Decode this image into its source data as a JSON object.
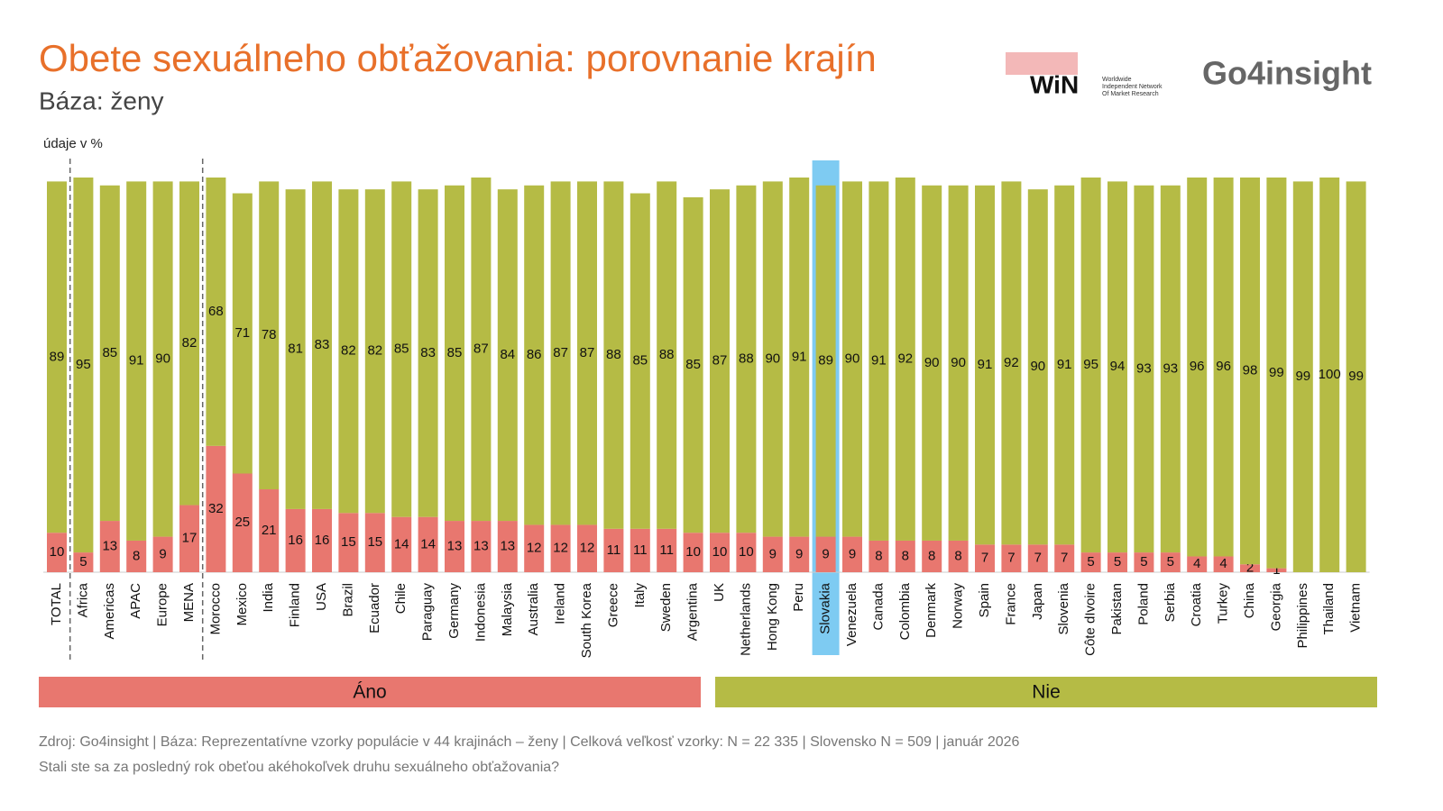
{
  "chart_data": {
    "type": "stacked-bar",
    "title": "Obete sexuálneho obťažovania: porovnanie krajín",
    "subtitle": "Báza: ženy",
    "unit_note": "údaje v %",
    "categories": [
      "TOTAL",
      "Africa",
      "Americas",
      "APAC",
      "Europe",
      "MENA",
      "Morocco",
      "Mexico",
      "India",
      "Finland",
      "USA",
      "Brazil",
      "Ecuador",
      "Chile",
      "Paraguay",
      "Germany",
      "Indonesia",
      "Malaysia",
      "Australia",
      "Ireland",
      "South Korea",
      "Greece",
      "Italy",
      "Sweden",
      "Argentina",
      "UK",
      "Netherlands",
      "Hong Kong",
      "Peru",
      "Slovakia",
      "Venezuela",
      "Canada",
      "Colombia",
      "Denmark",
      "Norway",
      "Spain",
      "France",
      "Japan",
      "Slovenia",
      "Côte dIvoire",
      "Pakistan",
      "Poland",
      "Serbia",
      "Croatia",
      "Turkey",
      "China",
      "Georgia",
      "Philippines",
      "Thailand",
      "Vietnam"
    ],
    "series": [
      {
        "name": "Áno",
        "color": "#e8776f",
        "values": [
          10,
          5,
          13,
          8,
          9,
          17,
          32,
          25,
          21,
          16,
          16,
          15,
          15,
          14,
          14,
          13,
          13,
          13,
          12,
          12,
          12,
          11,
          11,
          11,
          10,
          10,
          10,
          9,
          9,
          9,
          9,
          8,
          8,
          8,
          8,
          7,
          7,
          7,
          7,
          5,
          5,
          5,
          5,
          4,
          4,
          2,
          1,
          null,
          null,
          null
        ]
      },
      {
        "name": "Nie",
        "color": "#b5bb45",
        "values": [
          89,
          95,
          85,
          91,
          90,
          82,
          68,
          71,
          78,
          81,
          83,
          82,
          82,
          85,
          83,
          85,
          87,
          84,
          86,
          87,
          87,
          88,
          85,
          88,
          85,
          87,
          88,
          90,
          91,
          89,
          90,
          91,
          92,
          90,
          90,
          91,
          92,
          90,
          91,
          95,
          94,
          93,
          93,
          96,
          96,
          98,
          99,
          99,
          100,
          99
        ]
      }
    ],
    "ylim": [
      0,
      100
    ],
    "highlight": "Slovakia",
    "highlight_color": "#7ecbf2",
    "dividers_after": [
      "TOTAL",
      "MENA"
    ],
    "source": "Zdroj: Go4insight | Báza: Reprezentatívne vzorky populácie v 44 krajinách – ženy | Celková veľkosť vzorky: N = 22 335 | Slovensko N = 509 | január 2026",
    "question": "Stali ste sa za posledný rok obeťou akéhokoľvek druhu sexuálneho obťažovania?"
  },
  "logos": {
    "win": "WiN",
    "win_tagline": [
      "Worldwide",
      "Independent Network",
      "Of Market Research"
    ],
    "go4insight": "Go4insight"
  }
}
